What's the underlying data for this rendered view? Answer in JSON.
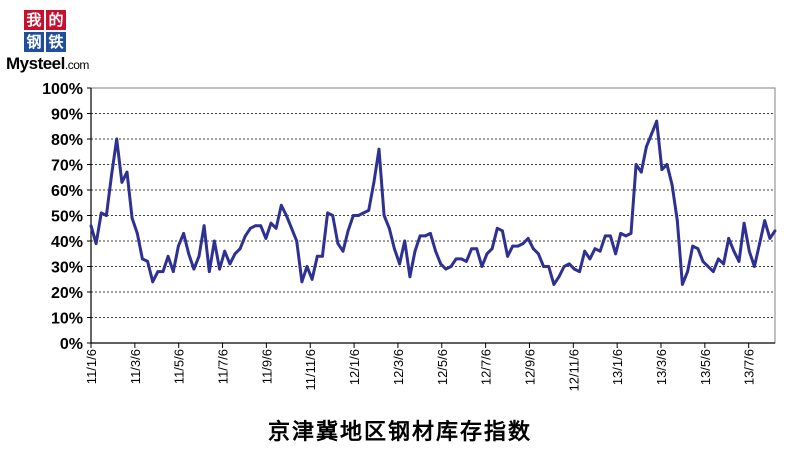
{
  "logo": {
    "cn_top_left": "我",
    "cn_top_right": "的",
    "cn_bottom_left": "钢",
    "cn_bottom_right": "铁",
    "brand": "Mysteel",
    "domain_suffix": ".com"
  },
  "chart_data": {
    "type": "line",
    "title": "京津冀地区钢材库存指数",
    "ylim": [
      0,
      100
    ],
    "grid": true,
    "y_tick_labels": [
      "0%",
      "10%",
      "20%",
      "30%",
      "40%",
      "50%",
      "60%",
      "70%",
      "80%",
      "90%",
      "100%"
    ],
    "x_tick_labels": [
      "11/1/6",
      "11/3/6",
      "11/5/6",
      "11/7/6",
      "11/9/6",
      "11/11/6",
      "12/1/6",
      "12/3/6",
      "12/5/6",
      "12/7/6",
      "12/9/6",
      "12/11/6",
      "13/1/6",
      "13/3/6",
      "13/5/6",
      "13/7/6"
    ],
    "line_color": "#2e3192",
    "series": [
      {
        "values": [
          46,
          39,
          51,
          50,
          66,
          80,
          63,
          67,
          49,
          43,
          33,
          32,
          24,
          28,
          28,
          34,
          28,
          38,
          43,
          35,
          29,
          34,
          46,
          28,
          40,
          29,
          36,
          31,
          35,
          37,
          42,
          45,
          46,
          46,
          41,
          47,
          45,
          54,
          50,
          45,
          40,
          24,
          30,
          25,
          34,
          34,
          51,
          50,
          39,
          36,
          44,
          50,
          50,
          51,
          52,
          63,
          76,
          50,
          45,
          37,
          31,
          40,
          26,
          36,
          42,
          42,
          43,
          36,
          31,
          29,
          30,
          33,
          33,
          32,
          37,
          37,
          30,
          35,
          37,
          45,
          44,
          34,
          38,
          38,
          39,
          41,
          37,
          35,
          30,
          30,
          23,
          26,
          30,
          31,
          29,
          28,
          36,
          33,
          37,
          36,
          42,
          42,
          35,
          43,
          42,
          43,
          70,
          67,
          77,
          82,
          87,
          68,
          70,
          62,
          48,
          23,
          28,
          38,
          37,
          32,
          30,
          28,
          33,
          31,
          41,
          36,
          32,
          47,
          36,
          30,
          39,
          48,
          41,
          44
        ]
      }
    ]
  }
}
